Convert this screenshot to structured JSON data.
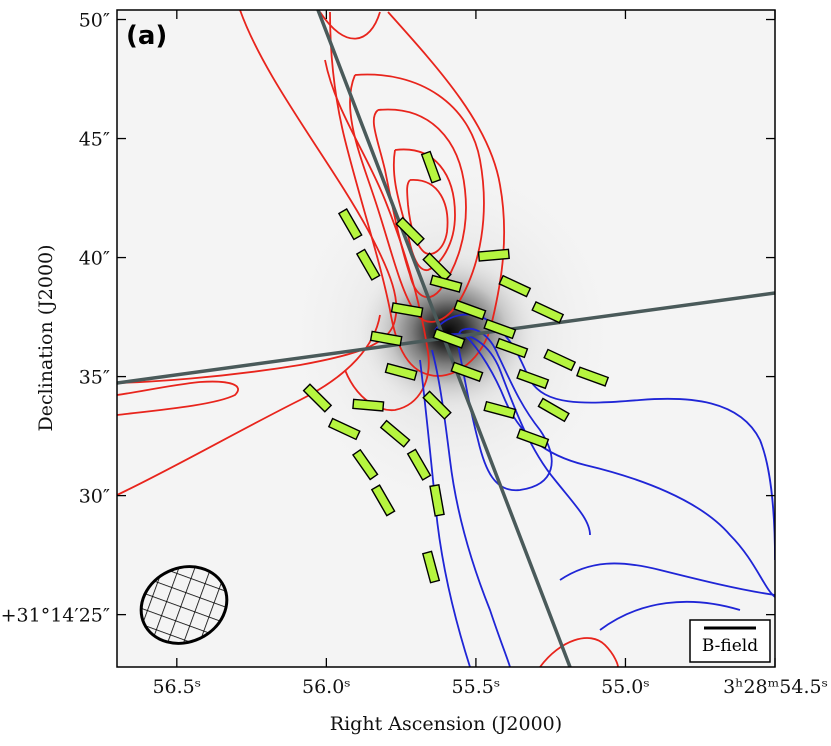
{
  "chart_data": {
    "type": "map",
    "panel_label": "(a)",
    "xlabel": "Right Ascension (J2000)",
    "ylabel": "Declination (J2000)",
    "x_ticks": [
      {
        "value": 56.5,
        "label": "56.5ˢ"
      },
      {
        "value": 56.0,
        "label": "56.0ˢ"
      },
      {
        "value": 55.5,
        "label": "55.5ˢ"
      },
      {
        "value": 55.0,
        "label": "55.0ˢ"
      },
      {
        "value": 54.5,
        "label": "3ʰ28ᵐ54.5ˢ"
      }
    ],
    "y_ticks": [
      {
        "value": 50,
        "label": "50″"
      },
      {
        "value": 45,
        "label": "45″"
      },
      {
        "value": 40,
        "label": "40″"
      },
      {
        "value": 35,
        "label": "35″"
      },
      {
        "value": 30,
        "label": "30″"
      },
      {
        "value": 25,
        "label": "+31°14′25″"
      }
    ],
    "xlim": [
      56.7,
      54.5
    ],
    "ylim": [
      22.8,
      50.4
    ],
    "x_units": "RA seconds (3h28m)",
    "y_units": "Dec arcsec (+31°14′)",
    "background": {
      "type": "greyscale intensity",
      "peak": {
        "ra": 55.62,
        "dec": 36.8
      }
    },
    "contours": {
      "red": {
        "color": "#e8241c",
        "direction": "north-west",
        "levels": 6
      },
      "blue": {
        "color": "#1f25d6",
        "direction": "south-east",
        "levels": 6
      }
    },
    "axis_lines_color": "#4a5a5a",
    "segment_color": "#b6f53f",
    "beam": {
      "ra": 56.35,
      "dec": 26.3,
      "hatched": true
    },
    "legend": {
      "label": "B-field",
      "position": "bottom-right"
    },
    "segments": [
      {
        "ra": 55.65,
        "dec": 43.8,
        "angle": 70
      },
      {
        "ra": 55.92,
        "dec": 41.4,
        "angle": 60
      },
      {
        "ra": 55.86,
        "dec": 39.7,
        "angle": 60
      },
      {
        "ra": 55.72,
        "dec": 41.1,
        "angle": 45
      },
      {
        "ra": 55.63,
        "dec": 39.6,
        "angle": 45
      },
      {
        "ra": 55.44,
        "dec": 40.1,
        "angle": -5
      },
      {
        "ra": 55.6,
        "dec": 38.9,
        "angle": 15
      },
      {
        "ra": 55.37,
        "dec": 38.8,
        "angle": 25
      },
      {
        "ra": 55.26,
        "dec": 37.7,
        "angle": 25
      },
      {
        "ra": 55.73,
        "dec": 37.8,
        "angle": 10
      },
      {
        "ra": 55.52,
        "dec": 37.8,
        "angle": 20
      },
      {
        "ra": 55.42,
        "dec": 37.0,
        "angle": 20
      },
      {
        "ra": 55.8,
        "dec": 36.6,
        "angle": 10
      },
      {
        "ra": 55.59,
        "dec": 36.6,
        "angle": 20
      },
      {
        "ra": 55.38,
        "dec": 36.2,
        "angle": 20
      },
      {
        "ra": 55.22,
        "dec": 35.7,
        "angle": 25
      },
      {
        "ra": 55.11,
        "dec": 35.0,
        "angle": 20
      },
      {
        "ra": 55.75,
        "dec": 35.2,
        "angle": 15
      },
      {
        "ra": 55.53,
        "dec": 35.2,
        "angle": 20
      },
      {
        "ra": 55.31,
        "dec": 34.9,
        "angle": 20
      },
      {
        "ra": 55.86,
        "dec": 33.8,
        "angle": 5
      },
      {
        "ra": 55.63,
        "dec": 33.8,
        "angle": 45
      },
      {
        "ra": 55.42,
        "dec": 33.6,
        "angle": 15
      },
      {
        "ra": 55.24,
        "dec": 33.6,
        "angle": 30
      },
      {
        "ra": 56.03,
        "dec": 34.1,
        "angle": 45
      },
      {
        "ra": 55.94,
        "dec": 32.8,
        "angle": 25
      },
      {
        "ra": 55.77,
        "dec": 32.6,
        "angle": 40
      },
      {
        "ra": 55.31,
        "dec": 32.4,
        "angle": 20
      },
      {
        "ra": 55.87,
        "dec": 31.3,
        "angle": 55
      },
      {
        "ra": 55.69,
        "dec": 31.3,
        "angle": 60
      },
      {
        "ra": 55.81,
        "dec": 29.8,
        "angle": 60
      },
      {
        "ra": 55.63,
        "dec": 29.8,
        "angle": 80
      },
      {
        "ra": 55.65,
        "dec": 27.0,
        "angle": 75
      }
    ]
  }
}
